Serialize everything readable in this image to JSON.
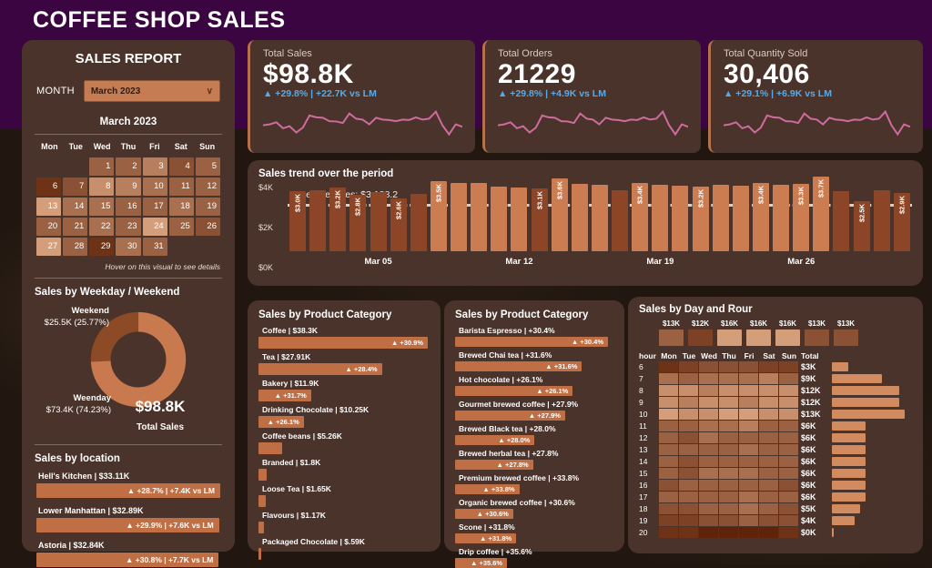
{
  "header": {
    "title": "COFFEE SHOP SALES"
  },
  "colors": {
    "accent_bar": "#c06f45",
    "bar_light": "#cb7c50",
    "bar_dark": "#8c4526",
    "spark_pink": "#cf6b9e",
    "delta_blue": "#58aae6",
    "panel": "#4a332b",
    "purple": "#3a0540",
    "heat_dark": "#5f2309",
    "heat_light": "#f3bd97",
    "donut_weekday": "#c8794e",
    "donut_weekend": "#8d4a26",
    "total_bar": "#d28a5f"
  },
  "sidebar": {
    "title": "SALES REPORT",
    "month_label": "MONTH",
    "month_value": "March 2023",
    "hover_note": "Hover on this visual to see details"
  },
  "kpis": [
    {
      "label": "Total Sales",
      "value": "$98.8K",
      "delta": "▲ +29.8% | +22.7K vs LM"
    },
    {
      "label": "Total Orders",
      "value": "21229",
      "delta": "▲ +29.8% | +4.9K vs LM"
    },
    {
      "label": "Total Quantity Sold",
      "value": "30,406",
      "delta": "▲ +29.1% | +6.9K vs LM"
    }
  ],
  "kpis_spark": [
    3.0,
    3.05,
    3.16,
    2.84,
    2.95,
    2.62,
    2.88,
    3.52,
    3.42,
    3.4,
    3.22,
    3.2,
    3.12,
    3.62,
    3.35,
    3.3,
    3.05,
    3.4,
    3.3,
    3.28,
    3.22,
    3.3,
    3.28,
    3.42,
    3.3,
    3.35,
    3.72,
    3.0,
    2.52,
    3.05,
    2.92
  ],
  "chart_data": [
    {
      "id": "sales_trend",
      "type": "bar",
      "title": "Sales trend over the period",
      "average": 3188.2,
      "average_label": "Average sales: $3,188.2",
      "ylim": [
        0,
        4000
      ],
      "y_ticks": [
        "$4K",
        "$2K",
        "$0K"
      ],
      "x": [
        "Mar 01",
        "Mar 02",
        "Mar 03",
        "Mar 04",
        "Mar 05",
        "Mar 06",
        "Mar 07",
        "Mar 08",
        "Mar 09",
        "Mar 10",
        "Mar 11",
        "Mar 12",
        "Mar 13",
        "Mar 14",
        "Mar 15",
        "Mar 16",
        "Mar 17",
        "Mar 18",
        "Mar 19",
        "Mar 20",
        "Mar 21",
        "Mar 22",
        "Mar 23",
        "Mar 24",
        "Mar 25",
        "Mar 26",
        "Mar 27",
        "Mar 28",
        "Mar 29",
        "Mar 30",
        "Mar 31"
      ],
      "values": [
        3020,
        3050,
        3160,
        2840,
        2950,
        2620,
        2880,
        3520,
        3420,
        3400,
        3220,
        3200,
        3120,
        3620,
        3350,
        3300,
        3050,
        3400,
        3300,
        3280,
        3220,
        3300,
        3280,
        3420,
        3300,
        3350,
        3720,
        3000,
        2520,
        3050,
        2920
      ],
      "bar_labels": [
        "$3.0K",
        "",
        "$3.2K",
        "$2.8K",
        "",
        "$2.6K",
        "",
        "$3.5K",
        "",
        "",
        "",
        "",
        "$3.1K",
        "$3.6K",
        "",
        "",
        "",
        "$3.4K",
        "",
        "",
        "$3.2K",
        "",
        "",
        "$3.4K",
        "",
        "$3.3K",
        "$3.7K",
        "",
        "$2.5K",
        "",
        "$2.9K"
      ],
      "tick_idx": [
        4,
        11,
        18,
        25
      ],
      "tick_labels": [
        "Mar 05",
        "Mar 12",
        "Mar 19",
        "Mar 26"
      ]
    },
    {
      "id": "sales_by_category",
      "type": "bar",
      "title": "Sales by Product Category",
      "items": [
        {
          "name": "Coffee",
          "value": "$38.3K",
          "v": 38.3,
          "delta": "▲ +30.9%"
        },
        {
          "name": "Tea",
          "value": "$27.91K",
          "v": 27.91,
          "delta": "▲ +28.4%"
        },
        {
          "name": "Bakery",
          "value": "$11.9K",
          "v": 11.9,
          "delta": "▲ +31.7%"
        },
        {
          "name": "Drinking Chocolate",
          "value": "$10.25K",
          "v": 10.25,
          "delta": "▲ +26.1%"
        },
        {
          "name": "Coffee beans",
          "value": "$5.26K",
          "v": 5.26,
          "delta": ""
        },
        {
          "name": "Branded",
          "value": "$1.8K",
          "v": 1.8,
          "delta": ""
        },
        {
          "name": "Loose Tea",
          "value": "$1.65K",
          "v": 1.65,
          "delta": ""
        },
        {
          "name": "Flavours",
          "value": "$1.17K",
          "v": 1.17,
          "delta": ""
        },
        {
          "name": "Packaged Chocolate",
          "value": "$.59K",
          "v": 0.59,
          "delta": ""
        }
      ]
    },
    {
      "id": "sales_by_product_type",
      "type": "bar",
      "title": "Sales by Product Category",
      "items": [
        {
          "name": "Barista Espresso",
          "value": "+30.4%",
          "v": 100,
          "delta": "▲ +30.4%"
        },
        {
          "name": "Brewed Chai tea",
          "value": "+31.6%",
          "v": 83,
          "delta": "▲ +31.6%"
        },
        {
          "name": "Hot chocolate",
          "value": "+26.1%",
          "v": 77,
          "delta": "▲ +26.1%"
        },
        {
          "name": "Gourmet brewed coffee",
          "value": "+27.9%",
          "v": 72,
          "delta": "▲ +27.9%"
        },
        {
          "name": "Brewed Black tea",
          "value": "+28.0%",
          "v": 52,
          "delta": "▲ +28.0%"
        },
        {
          "name": "Brewed herbal tea",
          "value": "+27.8%",
          "v": 51,
          "delta": "▲ +27.8%"
        },
        {
          "name": "Premium brewed coffee",
          "value": "+33.8%",
          "v": 42,
          "delta": "▲ +33.8%"
        },
        {
          "name": "Organic brewed coffee",
          "value": "+30.6%",
          "v": 38,
          "delta": "▲ +30.6%"
        },
        {
          "name": "Scone",
          "value": "+31.8%",
          "v": 40,
          "delta": "▲ +31.8%"
        },
        {
          "name": "Drip coffee",
          "value": "+35.6%",
          "v": 34,
          "delta": "▲ +35.6%"
        }
      ]
    },
    {
      "id": "day_hour_heatmap",
      "type": "heatmap",
      "title": "Sales by Day and Rour",
      "hour_header": "hour",
      "total_header": "Total",
      "days": [
        "Mon",
        "Tue",
        "Wed",
        "Thu",
        "Fri",
        "Sat",
        "Sun"
      ],
      "day_totals": [
        "$13K",
        "$12K",
        "$16K",
        "$16K",
        "$16K",
        "$13K",
        "$13K"
      ],
      "day_total_shades": [
        4,
        2,
        8,
        8,
        8,
        3,
        3
      ],
      "hours": [
        6,
        7,
        8,
        9,
        10,
        11,
        12,
        13,
        14,
        15,
        16,
        17,
        18,
        19,
        20
      ],
      "matrix": [
        [
          1,
          2,
          3,
          3,
          3,
          2,
          2
        ],
        [
          5,
          4,
          5,
          5,
          5,
          6,
          4
        ],
        [
          7,
          7,
          6,
          7,
          7,
          7,
          7
        ],
        [
          7,
          6,
          7,
          7,
          6,
          7,
          7
        ],
        [
          8,
          7,
          7,
          8,
          8,
          7,
          7
        ],
        [
          4,
          4,
          5,
          5,
          6,
          4,
          4
        ],
        [
          4,
          3,
          5,
          4,
          4,
          4,
          4
        ],
        [
          4,
          4,
          4,
          4,
          5,
          4,
          4
        ],
        [
          4,
          3,
          4,
          4,
          4,
          4,
          4
        ],
        [
          4,
          3,
          5,
          5,
          5,
          4,
          4
        ],
        [
          3,
          4,
          4,
          4,
          4,
          4,
          3
        ],
        [
          4,
          4,
          4,
          4,
          5,
          4,
          4
        ],
        [
          3,
          3,
          4,
          4,
          5,
          4,
          3
        ],
        [
          2,
          2,
          3,
          3,
          4,
          3,
          3
        ],
        [
          1,
          1,
          0,
          0,
          0,
          0,
          1
        ]
      ],
      "totals": [
        "$3K",
        "$9K",
        "$12K",
        "$12K",
        "$13K",
        "$6K",
        "$6K",
        "$6K",
        "$6K",
        "$6K",
        "$6K",
        "$6K",
        "$5K",
        "$4K",
        "$0K"
      ],
      "total_nums": [
        3,
        9,
        12,
        12,
        13,
        6,
        6,
        6,
        6,
        6,
        6,
        6,
        5,
        4,
        0
      ]
    },
    {
      "id": "weekday_weekend_donut",
      "type": "pie",
      "title": "Sales by Weekday / Weekend",
      "segments": [
        {
          "name": "Weekend",
          "value": "$25.5K",
          "pct_label": "(25.77%)",
          "pct": 25.77
        },
        {
          "name": "Weenday",
          "value": "$73.4K",
          "pct_label": "(74.23%)",
          "pct": 74.23
        }
      ],
      "total_value": "$98.8K",
      "total_label": "Total Sales"
    },
    {
      "id": "sales_by_location",
      "type": "bar",
      "title": "Sales by location",
      "items": [
        {
          "name": "Hell's Kitchen",
          "value": "$33.11K",
          "v": 33.11,
          "delta": "▲ +28.7% | +7.4K vs LM"
        },
        {
          "name": "Lower Manhattan",
          "value": "$32.89K",
          "v": 32.89,
          "delta": "▲ +29.9% | +7.6K vs LM"
        },
        {
          "name": "Astoria",
          "value": "$32.84K",
          "v": 32.84,
          "delta": "▲ +30.8% | +7.7K vs LM"
        }
      ]
    },
    {
      "id": "calendar_heat",
      "type": "heatmap",
      "title": "March 2023",
      "weekdays": [
        "Mon",
        "Tue",
        "Wed",
        "Thu",
        "Fri",
        "Sat",
        "Sun"
      ],
      "start_offset": 2,
      "days": [
        {
          "d": 1,
          "shade": 4
        },
        {
          "d": 2,
          "shade": 4
        },
        {
          "d": 3,
          "shade": 6
        },
        {
          "d": 4,
          "shade": 3
        },
        {
          "d": 5,
          "shade": 4
        },
        {
          "d": 6,
          "shade": 1
        },
        {
          "d": 7,
          "shade": 3
        },
        {
          "d": 8,
          "shade": 7
        },
        {
          "d": 9,
          "shade": 6
        },
        {
          "d": 10,
          "shade": 5
        },
        {
          "d": 11,
          "shade": 4
        },
        {
          "d": 12,
          "shade": 4
        },
        {
          "d": 13,
          "shade": 8
        },
        {
          "d": 14,
          "shade": 5
        },
        {
          "d": 15,
          "shade": 5
        },
        {
          "d": 16,
          "shade": 4
        },
        {
          "d": 17,
          "shade": 4
        },
        {
          "d": 18,
          "shade": 5
        },
        {
          "d": 19,
          "shade": 4
        },
        {
          "d": 20,
          "shade": 4
        },
        {
          "d": 21,
          "shade": 4
        },
        {
          "d": 22,
          "shade": 5
        },
        {
          "d": 23,
          "shade": 4
        },
        {
          "d": 24,
          "shade": 8
        },
        {
          "d": 25,
          "shade": 4
        },
        {
          "d": 26,
          "shade": 3
        },
        {
          "d": 27,
          "shade": 8
        },
        {
          "d": 28,
          "shade": 4
        },
        {
          "d": 29,
          "shade": 1
        },
        {
          "d": 30,
          "shade": 5
        },
        {
          "d": 31,
          "shade": 4
        }
      ]
    }
  ]
}
